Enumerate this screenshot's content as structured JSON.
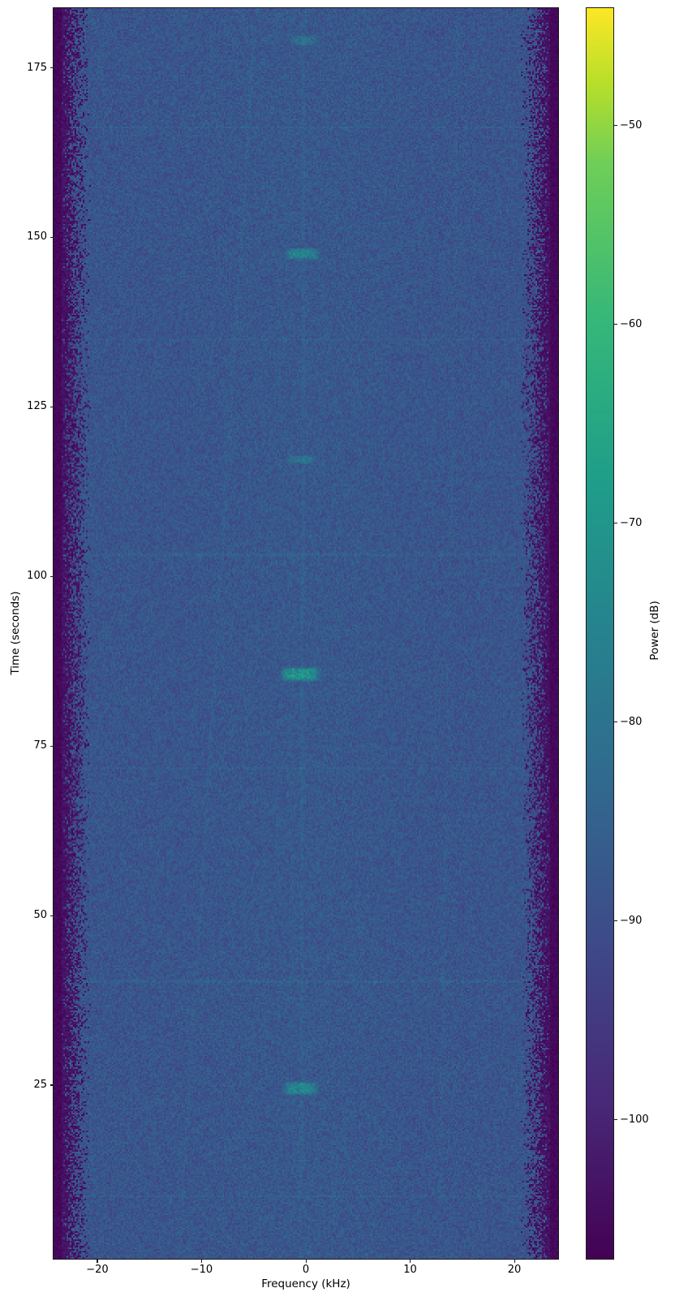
{
  "chart_data": {
    "type": "heatmap",
    "title": "",
    "xlabel": "Frequency (kHz)",
    "ylabel": "Time (seconds)",
    "colorbar_label": "Power (dB)",
    "colormap": "viridis",
    "xlim": [
      -24.2,
      24.2
    ],
    "ylim": [
      -0.6,
      183.8
    ],
    "clim": [
      -107,
      -44.1
    ],
    "grid": false,
    "legend": "none",
    "xticks": {
      "values": [
        -20,
        -10,
        0,
        10,
        20
      ],
      "labels": [
        "−20",
        "−10",
        "0",
        "10",
        "20"
      ]
    },
    "yticks": {
      "values": [
        25,
        50,
        75,
        100,
        125,
        150,
        175
      ],
      "labels": [
        "25",
        "50",
        "75",
        "100",
        "125",
        "150",
        "175"
      ]
    },
    "colorbar_ticks": {
      "values": [
        -50,
        -60,
        -70,
        -80,
        -90,
        -100
      ],
      "labels": [
        "−50",
        "−60",
        "−70",
        "−80",
        "−90",
        "−100"
      ]
    },
    "background_level_db": -88.2,
    "noise_db": 5.5,
    "floor_db": -105.5,
    "band_edge_khz": 20.6,
    "edge_rolloff_khz": 2.8,
    "center_glow": {
      "sigma_khz": 6.5,
      "amplitude_db": 0.7
    },
    "features": {
      "bursts": [
        {
          "freq_khz": -0.2,
          "time_s": 179.0,
          "half_width_khz": 1.15,
          "half_height_s": 0.65,
          "amplitude_db": 6
        },
        {
          "freq_khz": -0.3,
          "time_s": 147.6,
          "half_width_khz": 1.5,
          "half_height_s": 0.75,
          "amplitude_db": 12
        },
        {
          "freq_khz": -0.4,
          "time_s": 117.2,
          "half_width_khz": 1.25,
          "half_height_s": 0.55,
          "amplitude_db": 7
        },
        {
          "freq_khz": -0.5,
          "time_s": 85.6,
          "half_width_khz": 1.75,
          "half_height_s": 0.95,
          "amplitude_db": 16
        },
        {
          "freq_khz": -0.5,
          "time_s": 24.5,
          "half_width_khz": 1.5,
          "half_height_s": 0.9,
          "amplitude_db": 13
        }
      ],
      "scan_lines": {
        "times_s": [
          166.3,
          134.8,
          103.2,
          71.8,
          40.3,
          8.7
        ],
        "amplitude_db": 2.2,
        "half_width_s": 0.14
      },
      "traces": [
        {
          "freq_start_khz": -12.2,
          "freq_end_khz": -4.8,
          "amplitude_db": 1.3
        },
        {
          "freq_start_khz": -0.5,
          "freq_end_khz": -0.15,
          "amplitude_db": 1.6
        },
        {
          "freq_start_khz": 12.8,
          "freq_end_khz": 14.6,
          "amplitude_db": 0.9
        }
      ]
    },
    "viridis_stops": [
      {
        "t": 0.0,
        "color": "#440154"
      },
      {
        "t": 0.125,
        "color": "#482878"
      },
      {
        "t": 0.25,
        "color": "#3e4989"
      },
      {
        "t": 0.375,
        "color": "#31688e"
      },
      {
        "t": 0.5,
        "color": "#26828e"
      },
      {
        "t": 0.625,
        "color": "#1f9e89"
      },
      {
        "t": 0.75,
        "color": "#35b779"
      },
      {
        "t": 0.875,
        "color": "#6ece58"
      },
      {
        "t": 0.9375,
        "color": "#b5de2b"
      },
      {
        "t": 1.0,
        "color": "#fde725"
      }
    ]
  }
}
